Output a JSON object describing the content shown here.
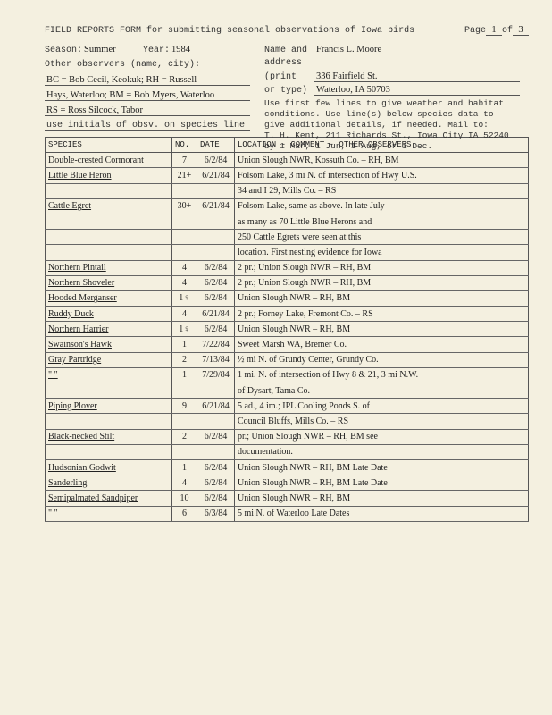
{
  "page": {
    "title_a": "FIELD REPORTS FORM for submitting seasonal observations of Iowa birds",
    "page_lbl": "Page",
    "of": "of",
    "page_no": "1",
    "page_total": "3"
  },
  "form": {
    "season_lbl": "Season:",
    "season": "Summer",
    "year_lbl": "Year:",
    "year": "1984",
    "obs_lbl": "Other observers (name, city):",
    "obs1": "BC = Bob Cecil, Keokuk; RH = Russell",
    "obs2": "Hays, Waterloo; BM = Bob Myers, Waterloo",
    "obs3": "RS = Ross Silcock, Tabor",
    "initials_lbl": "use initials of obsv. on species line",
    "name_lbl": "Name and",
    "addr_lbl": "address",
    "pt_lbl": "(print",
    "pt2_lbl": "or type)",
    "name": "Francis L. Moore",
    "addr1": "336 Fairfield St.",
    "addr2": "Waterloo, IA  50703",
    "instr1": "Use first few lines to give weather and habitat",
    "instr2": "conditions. Use line(s) below species data to",
    "instr3": "give additional details, if needed. Mail to:",
    "instr4": "T. H. Kent, 211 Richards St., Iowa City IA 52240",
    "instr5": "by 1 Mar, 1 Jun, 1 Aug, or 1 Dec."
  },
  "cols": {
    "sp": "SPECIES",
    "no": "NO.",
    "dt": "DATE",
    "loc": "LOCATION - COMMENT - OTHER OBSERVERS"
  },
  "rows": [
    {
      "sp": "Double-crested Cormorant",
      "no": "7",
      "dt": "6/2/84",
      "loc": "Union Slough NWR, Kossuth Co. – RH, BM"
    },
    {
      "sp": "Little Blue Heron",
      "no": "21+",
      "dt": "6/21/84",
      "loc": "Folsom Lake, 3 mi N. of intersection of Hwy U.S."
    },
    {
      "sp": "",
      "no": "",
      "dt": "",
      "loc": "34 and I 29, Mills Co. – RS"
    },
    {
      "sp": "Cattle Egret",
      "no": "30+",
      "dt": "6/21/84",
      "loc": "Folsom Lake, same as above.  In late July"
    },
    {
      "sp": "",
      "no": "",
      "dt": "",
      "loc": "as many as 70 Little Blue Herons and"
    },
    {
      "sp": "",
      "no": "",
      "dt": "",
      "loc": "250 Cattle Egrets were seen at this"
    },
    {
      "sp": "",
      "no": "",
      "dt": "",
      "loc": "location. First nesting evidence for Iowa"
    },
    {
      "sp": "Northern Pintail",
      "no": "4",
      "dt": "6/2/84",
      "loc": "2 pr.; Union Slough NWR – RH, BM"
    },
    {
      "sp": "Northern Shoveler",
      "no": "4",
      "dt": "6/2/84",
      "loc": "2 pr.; Union Slough NWR – RH, BM"
    },
    {
      "sp": "Hooded Merganser",
      "no": "1♀",
      "dt": "6/2/84",
      "loc": "Union Slough NWR – RH, BM"
    },
    {
      "sp": "Ruddy Duck",
      "no": "4",
      "dt": "6/21/84",
      "loc": "2 pr.; Forney Lake, Fremont Co. – RS"
    },
    {
      "sp": "Northern Harrier",
      "no": "1♀",
      "dt": "6/2/84",
      "loc": "Union Slough NWR – RH, BM"
    },
    {
      "sp": "Swainson's Hawk",
      "no": "1",
      "dt": "7/22/84",
      "loc": "Sweet Marsh WA, Bremer Co."
    },
    {
      "sp": "Gray Partridge",
      "no": "2",
      "dt": "7/13/84",
      "loc": "½ mi N. of Grundy Center, Grundy Co."
    },
    {
      "sp": "  \"       \"",
      "no": "1",
      "dt": "7/29/84",
      "loc": "1 mi. N. of intersection of Hwy 8 & 21, 3 mi N.W."
    },
    {
      "sp": "",
      "no": "",
      "dt": "",
      "loc": "of Dysart, Tama Co."
    },
    {
      "sp": "Piping Plover",
      "no": "9",
      "dt": "6/21/84",
      "loc": "5 ad., 4 im.; IPL Cooling Ponds S. of"
    },
    {
      "sp": "",
      "no": "",
      "dt": "",
      "loc": "Council Bluffs, Mills Co. – RS"
    },
    {
      "sp": "Black-necked Stilt",
      "no": "2",
      "dt": "6/2/84",
      "loc": "pr.; Union Slough NWR – RH, BM  see"
    },
    {
      "sp": "",
      "no": "",
      "dt": "",
      "loc": "documentation."
    },
    {
      "sp": "Hudsonian Godwit",
      "no": "1",
      "dt": "6/2/84",
      "loc": "Union Slough NWR – RH, BM   Late Date"
    },
    {
      "sp": "Sanderling",
      "no": "4",
      "dt": "6/2/84",
      "loc": "Union Slough NWR – RH, BM   Late Date"
    },
    {
      "sp": "Semipalmated Sandpiper",
      "no": "10",
      "dt": "6/2/84",
      "loc": "Union Slough NWR – RH, BM"
    },
    {
      "sp": "  \"           \"",
      "no": "6",
      "dt": "6/3/84",
      "loc": "5 mi N. of Waterloo        Late Dates"
    }
  ]
}
